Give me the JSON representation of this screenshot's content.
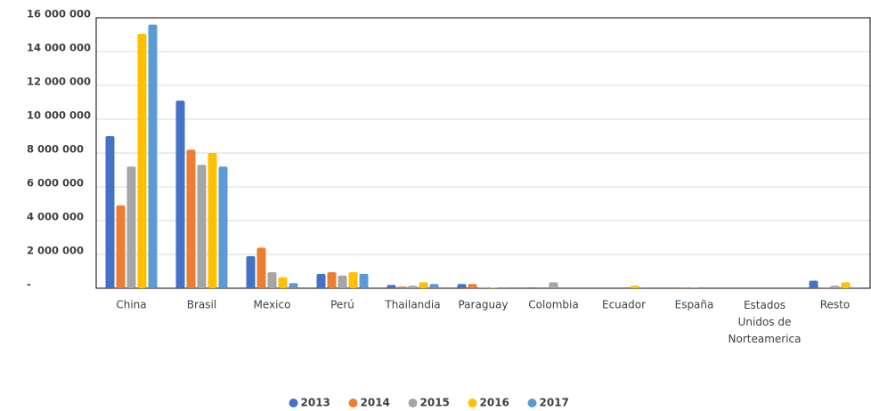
{
  "chart_data": {
    "type": "bar",
    "categories": [
      "China",
      "Brasil",
      "Mexico",
      "Perú",
      "Thailandia",
      "Paraguay",
      "Colombia",
      "Ecuador",
      "España",
      "Estados Unidos de Norteamerica",
      "Resto"
    ],
    "series": [
      {
        "name": "2013",
        "color": "#4472c4",
        "values": [
          9000000,
          11100000,
          1900000,
          850000,
          200000,
          250000,
          50000,
          0,
          0,
          0,
          450000
        ]
      },
      {
        "name": "2014",
        "color": "#ed7d31",
        "values": [
          4900000,
          8200000,
          2400000,
          950000,
          100000,
          250000,
          0,
          0,
          50000,
          0,
          50000
        ]
      },
      {
        "name": "2015",
        "color": "#a5a5a5",
        "values": [
          7200000,
          7300000,
          950000,
          750000,
          150000,
          50000,
          350000,
          0,
          50000,
          0,
          150000
        ]
      },
      {
        "name": "2016",
        "color": "#ffc000",
        "values": [
          15050000,
          8000000,
          650000,
          950000,
          350000,
          50000,
          0,
          150000,
          0,
          0,
          350000
        ]
      },
      {
        "name": "2017",
        "color": "#5b9bd5",
        "values": [
          15600000,
          7200000,
          300000,
          850000,
          250000,
          50000,
          0,
          50000,
          0,
          0,
          50000
        ]
      }
    ],
    "ylim": [
      0,
      16000000
    ],
    "yticks": [
      {
        "value": 0,
        "label": "-"
      },
      {
        "value": 2000000,
        "label": "2 000 000"
      },
      {
        "value": 4000000,
        "label": "4 000 000"
      },
      {
        "value": 6000000,
        "label": "6 000 000"
      },
      {
        "value": 8000000,
        "label": "8 000 000"
      },
      {
        "value": 10000000,
        "label": "10 000 000"
      },
      {
        "value": 12000000,
        "label": "12 000 000"
      },
      {
        "value": 14000000,
        "label": "14 000 000"
      },
      {
        "value": 16000000,
        "label": "16 000 000"
      }
    ],
    "grid": true,
    "legend": "bottom"
  }
}
